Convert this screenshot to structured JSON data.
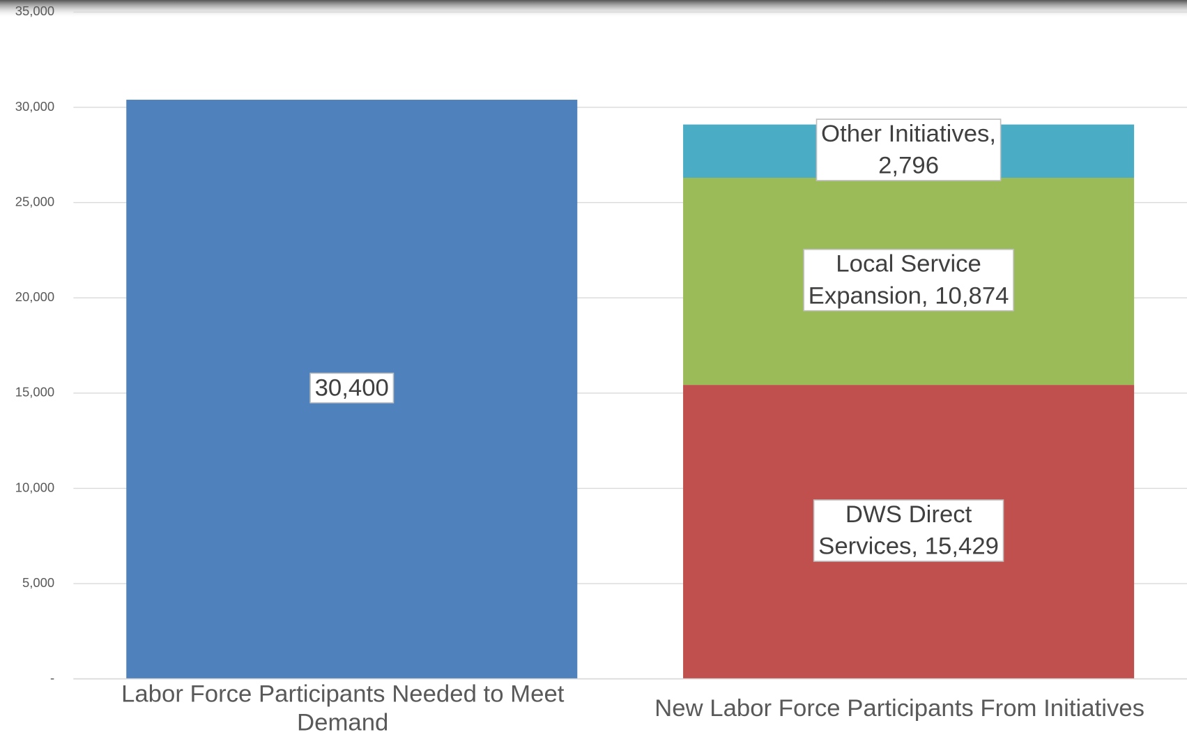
{
  "chart_data": {
    "type": "stacked_bar",
    "categories": [
      "Labor Force Participants Needed to Meet Demand",
      "New Labor Force Participants From Initiatives"
    ],
    "series": [
      {
        "color": "#4f81bd",
        "values": [
          30400,
          null
        ],
        "value_labels": [
          "30,400",
          null
        ]
      },
      {
        "color": "#c0504d",
        "values": [
          null,
          15429
        ],
        "value_labels": [
          null,
          "DWS Direct Services, 15,429"
        ]
      },
      {
        "color": "#9bbb59",
        "values": [
          null,
          10874
        ],
        "value_labels": [
          null,
          "Local Service Expansion, 10,874"
        ]
      },
      {
        "color": "#4bacc6",
        "values": [
          null,
          2796
        ],
        "value_labels": [
          null,
          "Other Initiatives, 2,796"
        ]
      }
    ],
    "ylim": [
      0,
      35000
    ],
    "yticks": [
      {
        "value": 0,
        "label": "-"
      },
      {
        "value": 5000,
        "label": "5,000"
      },
      {
        "value": 10000,
        "label": "10,000"
      },
      {
        "value": 15000,
        "label": "15,000"
      },
      {
        "value": 20000,
        "label": "20,000"
      },
      {
        "value": 25000,
        "label": "25,000"
      },
      {
        "value": 30000,
        "label": "30,000"
      },
      {
        "value": 35000,
        "label": "35,000"
      }
    ],
    "grid": true
  }
}
